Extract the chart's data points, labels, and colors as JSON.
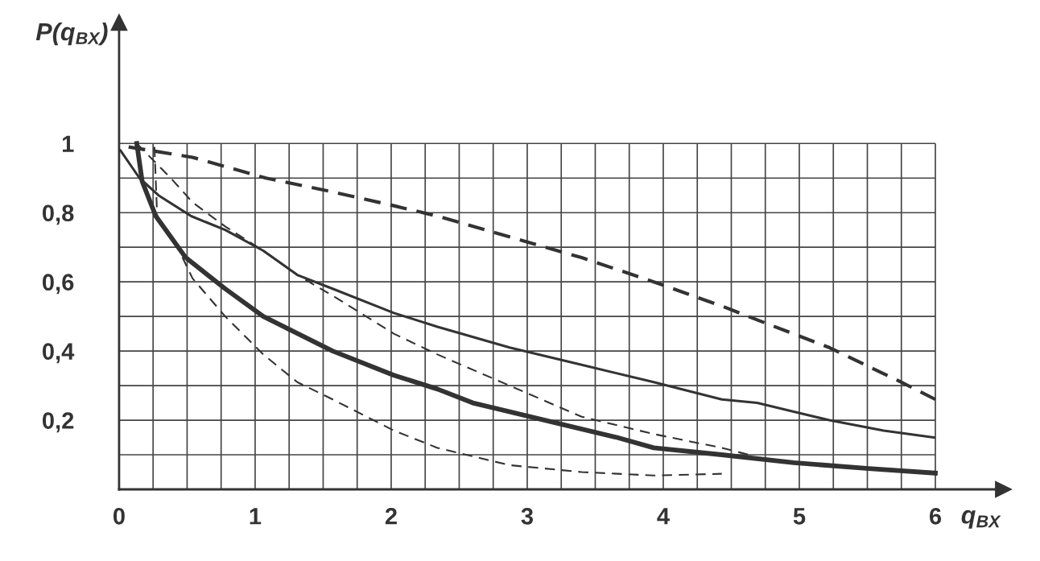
{
  "chart_data": {
    "type": "line",
    "xlabel": "q$_{ВХ}$",
    "ylabel": "P(q$_{ВХ}$)",
    "xlim": [
      0,
      6.5
    ],
    "ylim": [
      0,
      1.35
    ],
    "xticks": [
      0,
      {
        "value": 0.25,
        "label": null
      },
      {
        "value": 0.5,
        "label": null
      },
      {
        "value": 0.75,
        "label": null
      },
      1,
      {
        "value": 1.25,
        "label": null
      },
      {
        "value": 1.5,
        "label": null
      },
      {
        "value": 1.75,
        "label": null
      },
      2,
      {
        "value": 2.25,
        "label": null
      },
      {
        "value": 2.5,
        "label": null
      },
      {
        "value": 2.75,
        "label": null
      },
      3,
      {
        "value": 3.25,
        "label": null
      },
      {
        "value": 3.5,
        "label": null
      },
      {
        "value": 3.75,
        "label": null
      },
      4,
      {
        "value": 4.25,
        "label": null
      },
      {
        "value": 4.5,
        "label": null
      },
      {
        "value": 4.75,
        "label": null
      },
      5,
      {
        "value": 5.25,
        "label": null
      },
      {
        "value": 5.5,
        "label": null
      },
      {
        "value": 5.75,
        "label": null
      },
      6
    ],
    "yticks": [
      {
        "value": 0,
        "label": null
      },
      {
        "value": 0.1,
        "label": null
      },
      {
        "value": 0.2,
        "label": "0,2"
      },
      {
        "value": 0.3,
        "label": null
      },
      {
        "value": 0.4,
        "label": "0,4"
      },
      {
        "value": 0.5,
        "label": null
      },
      {
        "value": 0.6,
        "label": "0,6"
      },
      {
        "value": 0.7,
        "label": null
      },
      {
        "value": 0.8,
        "label": "0,8"
      },
      {
        "value": 0.9,
        "label": null
      },
      {
        "value": 1,
        "label": "1"
      }
    ],
    "grid": true,
    "series": [
      {
        "color": "#333333",
        "line_style": "solid",
        "x": [
          0.13,
          0.17,
          0.27,
          0.49,
          0.78,
          1.06,
          1.57,
          2.02,
          2.34,
          2.6,
          3.13,
          3.66,
          3.93,
          4.43,
          4.96,
          5.51,
          6.0
        ],
        "values": [
          1.0,
          0.89,
          0.79,
          0.67,
          0.58,
          0.5,
          0.4,
          0.33,
          0.29,
          0.25,
          0.2,
          0.15,
          0.12,
          0.1,
          0.077,
          0.06,
          0.047
        ]
      },
      {
        "color": "#333333",
        "line_style": "solid",
        "x": [
          0.01,
          0.15,
          0.29,
          0.53,
          0.78,
          1.06,
          1.31,
          1.57,
          2.02,
          2.34,
          2.87,
          3.4,
          3.93,
          4.43,
          4.69,
          5.22,
          5.62,
          5.99
        ],
        "values": [
          0.98,
          0.9,
          0.85,
          0.79,
          0.75,
          0.69,
          0.62,
          0.58,
          0.51,
          0.47,
          0.41,
          0.36,
          0.31,
          0.26,
          0.25,
          0.2,
          0.17,
          0.15
        ]
      },
      {
        "color": "#333333",
        "line_style": "dashed",
        "x": [
          0.07,
          0.54,
          1.08,
          1.57,
          2.02,
          2.34,
          2.87,
          3.4,
          3.93,
          4.43,
          4.69,
          5.22,
          5.75,
          6.0
        ],
        "values": [
          0.99,
          0.96,
          0.9,
          0.86,
          0.82,
          0.79,
          0.73,
          0.67,
          0.6,
          0.53,
          0.49,
          0.41,
          0.31,
          0.26
        ]
      },
      {
        "color": "#333333",
        "line_style": "dashed",
        "x": [
          0.13,
          0.38,
          0.54,
          0.78,
          1.06,
          1.31,
          1.57,
          2.02,
          2.34,
          2.87,
          3.4,
          3.93,
          4.43,
          4.63
        ],
        "values": [
          1.0,
          0.9,
          0.83,
          0.76,
          0.69,
          0.62,
          0.56,
          0.45,
          0.39,
          0.3,
          0.21,
          0.16,
          0.12,
          0.1
        ]
      },
      {
        "color": "#333333",
        "line_style": "dashed",
        "x": [
          0.26,
          0.28,
          0.43,
          0.54,
          0.78,
          1.06,
          1.31,
          1.57,
          2.02,
          2.34,
          2.87,
          3.4,
          3.93,
          4.43
        ],
        "values": [
          0.99,
          0.79,
          0.7,
          0.61,
          0.5,
          0.39,
          0.31,
          0.26,
          0.17,
          0.12,
          0.07,
          0.05,
          0.04,
          0.045
        ]
      }
    ]
  }
}
